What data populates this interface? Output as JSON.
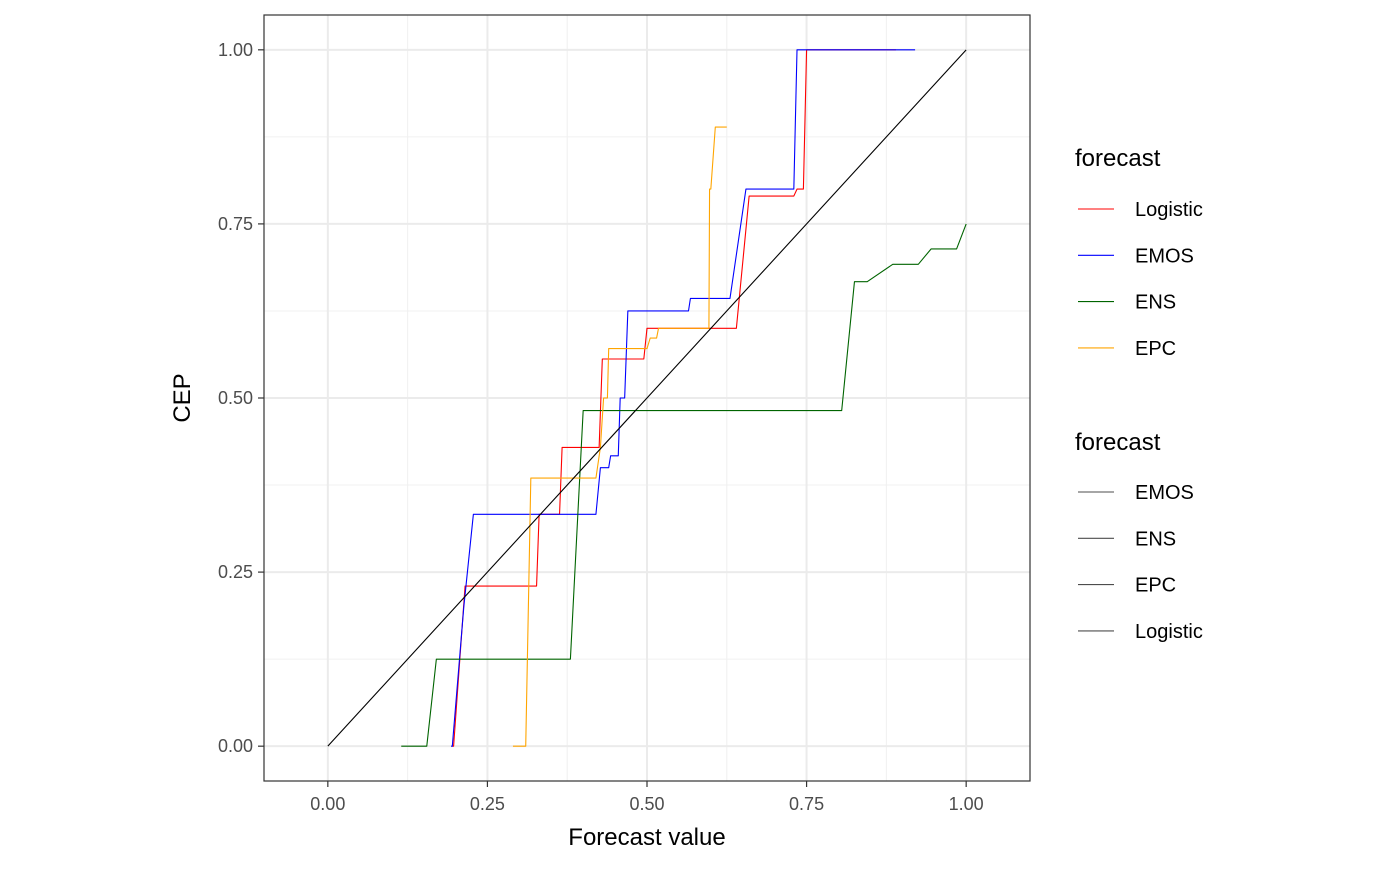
{
  "chart_data": {
    "type": "line",
    "title": "",
    "xlabel": "Forecast value",
    "ylabel": "CEP",
    "xlim": [
      -0.1,
      1.1
    ],
    "ylim": [
      -0.05,
      1.05
    ],
    "x_ticks": [
      0,
      0.25,
      0.5,
      0.75,
      1
    ],
    "y_ticks": [
      0,
      0.25,
      0.5,
      0.75,
      1
    ],
    "x_tick_labels": [
      "0.00",
      "0.25",
      "0.50",
      "0.75",
      "1.00"
    ],
    "y_tick_labels": [
      "0.00",
      "0.25",
      "0.50",
      "0.75",
      "1.00"
    ],
    "grid": true,
    "legend_placement": "right",
    "series": [
      {
        "name": "Logistic",
        "color": "#FF0000",
        "points": [
          [
            0.195,
            0.0
          ],
          [
            0.197,
            0.0
          ],
          [
            0.215,
            0.23
          ],
          [
            0.327,
            0.23
          ],
          [
            0.331,
            0.333
          ],
          [
            0.363,
            0.333
          ],
          [
            0.367,
            0.429
          ],
          [
            0.425,
            0.429
          ],
          [
            0.43,
            0.556
          ],
          [
            0.495,
            0.556
          ],
          [
            0.5,
            0.6
          ],
          [
            0.64,
            0.6
          ],
          [
            0.66,
            0.79
          ],
          [
            0.73,
            0.79
          ],
          [
            0.735,
            0.8
          ],
          [
            0.745,
            0.8
          ],
          [
            0.75,
            1.0
          ],
          [
            0.89,
            1.0
          ]
        ]
      },
      {
        "name": "EMOS",
        "color": "#0000FF",
        "points": [
          [
            0.193,
            0.0
          ],
          [
            0.195,
            0.0
          ],
          [
            0.213,
            0.2
          ],
          [
            0.228,
            0.333
          ],
          [
            0.42,
            0.333
          ],
          [
            0.427,
            0.4
          ],
          [
            0.44,
            0.4
          ],
          [
            0.443,
            0.417
          ],
          [
            0.455,
            0.417
          ],
          [
            0.458,
            0.5
          ],
          [
            0.465,
            0.5
          ],
          [
            0.47,
            0.625
          ],
          [
            0.565,
            0.625
          ],
          [
            0.568,
            0.643
          ],
          [
            0.63,
            0.643
          ],
          [
            0.655,
            0.8
          ],
          [
            0.73,
            0.8
          ],
          [
            0.735,
            1.0
          ],
          [
            0.92,
            1.0
          ]
        ]
      },
      {
        "name": "ENS",
        "color": "#006400",
        "points": [
          [
            0.115,
            0.0
          ],
          [
            0.155,
            0.0
          ],
          [
            0.17,
            0.125
          ],
          [
            0.38,
            0.125
          ],
          [
            0.4,
            0.482
          ],
          [
            0.805,
            0.482
          ],
          [
            0.825,
            0.667
          ],
          [
            0.845,
            0.667
          ],
          [
            0.885,
            0.692
          ],
          [
            0.925,
            0.692
          ],
          [
            0.945,
            0.714
          ],
          [
            0.985,
            0.714
          ],
          [
            1.0,
            0.75
          ]
        ]
      },
      {
        "name": "EPC",
        "color": "#FFA500",
        "points": [
          [
            0.29,
            0.0
          ],
          [
            0.31,
            0.0
          ],
          [
            0.318,
            0.385
          ],
          [
            0.42,
            0.385
          ],
          [
            0.427,
            0.429
          ],
          [
            0.432,
            0.5
          ],
          [
            0.438,
            0.5
          ],
          [
            0.44,
            0.571
          ],
          [
            0.5,
            0.571
          ],
          [
            0.505,
            0.586
          ],
          [
            0.515,
            0.586
          ],
          [
            0.518,
            0.6
          ],
          [
            0.597,
            0.6
          ],
          [
            0.598,
            0.8
          ],
          [
            0.6,
            0.8
          ],
          [
            0.607,
            0.889
          ],
          [
            0.625,
            0.889
          ]
        ]
      },
      {
        "name": "",
        "color": "#000000",
        "points": [
          [
            0,
            0
          ],
          [
            1,
            1
          ]
        ]
      }
    ]
  },
  "legends": [
    {
      "title": "forecast",
      "items": [
        {
          "label": "Logistic",
          "color": "#FF0000"
        },
        {
          "label": "EMOS",
          "color": "#0000FF"
        },
        {
          "label": "ENS",
          "color": "#006400"
        },
        {
          "label": "EPC",
          "color": "#FFA500"
        }
      ]
    },
    {
      "title": "forecast",
      "items": [
        {
          "label": "EMOS",
          "color": "#4d4d4d"
        },
        {
          "label": "ENS",
          "color": "#4d4d4d"
        },
        {
          "label": "EPC",
          "color": "#4d4d4d"
        },
        {
          "label": "Logistic",
          "color": "#4d4d4d"
        }
      ]
    }
  ]
}
